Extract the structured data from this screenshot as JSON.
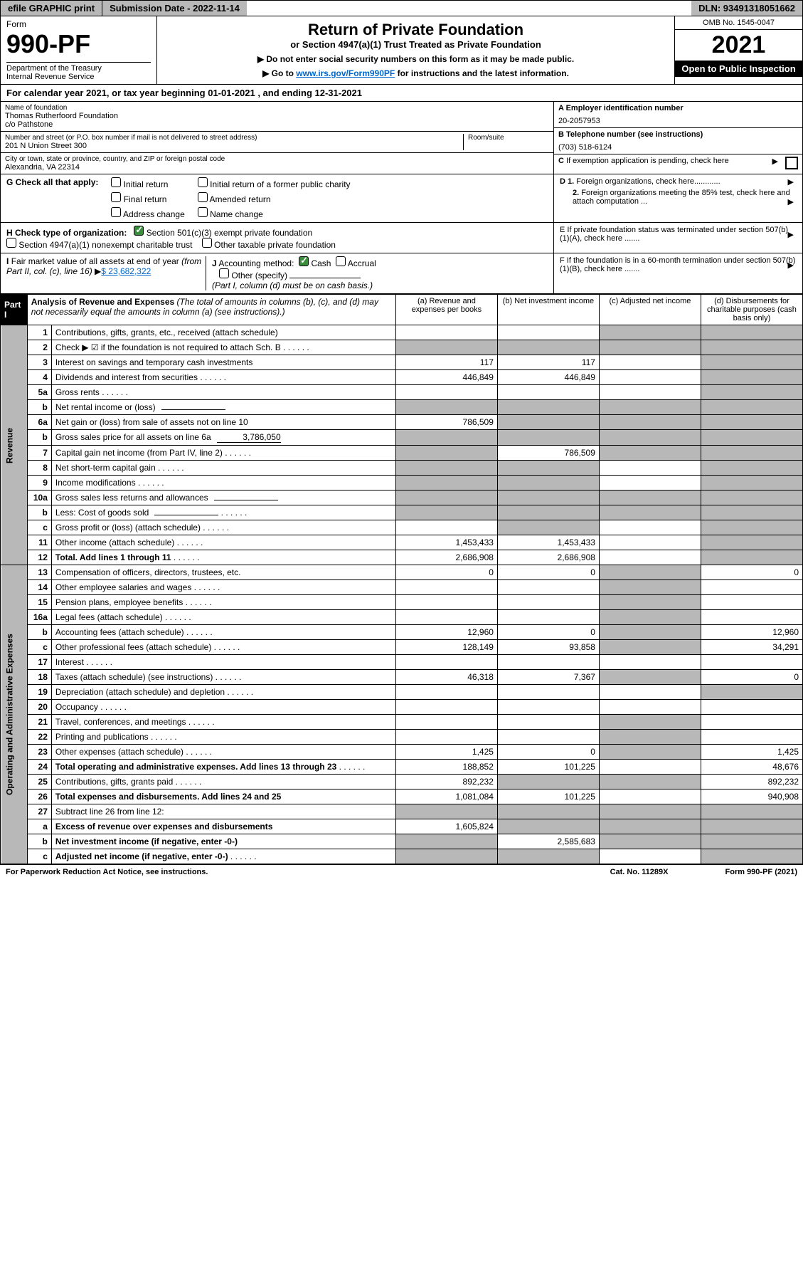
{
  "topbar": {
    "efile": "efile GRAPHIC print",
    "submission": "Submission Date - 2022-11-14",
    "dln": "DLN: 93491318051662"
  },
  "header": {
    "form_label": "Form",
    "form_num": "990-PF",
    "dept": "Department of the Treasury\nInternal Revenue Service",
    "title": "Return of Private Foundation",
    "subtitle": "or Section 4947(a)(1) Trust Treated as Private Foundation",
    "note1": "▶ Do not enter social security numbers on this form as it may be made public.",
    "note2_pre": "▶ Go to ",
    "note2_link": "www.irs.gov/Form990PF",
    "note2_post": " for instructions and the latest information.",
    "omb": "OMB No. 1545-0047",
    "year": "2021",
    "inspect": "Open to Public Inspection"
  },
  "cal": "For calendar year 2021, or tax year beginning 01-01-2021          , and ending 12-31-2021",
  "foundation": {
    "name_label": "Name of foundation",
    "name": "Thomas Rutherfoord Foundation",
    "care": "c/o Pathstone",
    "addr_label": "Number and street (or P.O. box number if mail is not delivered to street address)",
    "addr": "201 N Union Street 300",
    "room_label": "Room/suite",
    "city_label": "City or town, state or province, country, and ZIP or foreign postal code",
    "city": "Alexandria, VA  22314",
    "ein_label": "A Employer identification number",
    "ein": "20-2057953",
    "tel_label": "B Telephone number (see instructions)",
    "tel": "(703) 518-6124",
    "c_label": "C If exemption application is pending, check here",
    "d1": "D 1. Foreign organizations, check here............",
    "d2": "2. Foreign organizations meeting the 85% test, check here and attach computation ...",
    "e_label": "E  If private foundation status was terminated under section 507(b)(1)(A), check here .......",
    "f_label": "F  If the foundation is in a 60-month termination under section 507(b)(1)(B), check here ......."
  },
  "g": {
    "label": "G Check all that apply:",
    "opt1": "Initial return",
    "opt2": "Initial return of a former public charity",
    "opt3": "Final return",
    "opt4": "Amended return",
    "opt5": "Address change",
    "opt6": "Name change"
  },
  "h": {
    "label": "H Check type of organization:",
    "opt1": "Section 501(c)(3) exempt private foundation",
    "opt2": "Section 4947(a)(1) nonexempt charitable trust",
    "opt3": "Other taxable private foundation"
  },
  "i": {
    "label": "I Fair market value of all assets at end of year (from Part II, col. (c), line 16)",
    "val": "$ 23,682,322"
  },
  "j": {
    "label": "J Accounting method:",
    "cash": "Cash",
    "accrual": "Accrual",
    "other": "Other (specify)",
    "note": "(Part I, column (d) must be on cash basis.)"
  },
  "part1": {
    "tab": "Part I",
    "title": "Analysis of Revenue and Expenses",
    "note": "(The total of amounts in columns (b), (c), and (d) may not necessarily equal the amounts in column (a) (see instructions).)",
    "col_a": "(a)   Revenue and expenses per books",
    "col_b": "(b)   Net investment income",
    "col_c": "(c)   Adjusted net income",
    "col_d": "(d)   Disbursements for charitable purposes (cash basis only)"
  },
  "rows": [
    {
      "n": "1",
      "d": "Contributions, gifts, grants, etc., received (attach schedule)",
      "a": "",
      "b": "",
      "c": null,
      "x": null,
      "shade_c": true,
      "shade_d": true
    },
    {
      "n": "2",
      "d": "Check ▶ ☑ if the foundation is not required to attach Sch. B",
      "a": "",
      "b": "",
      "c": null,
      "x": null,
      "shade_a": true,
      "shade_b": true,
      "shade_c": true,
      "shade_d": true,
      "dots": true
    },
    {
      "n": "3",
      "d": "Interest on savings and temporary cash investments",
      "a": "117",
      "b": "117",
      "c": "",
      "x": null,
      "shade_d": true
    },
    {
      "n": "4",
      "d": "Dividends and interest from securities",
      "a": "446,849",
      "b": "446,849",
      "c": "",
      "x": null,
      "shade_d": true,
      "dots": true
    },
    {
      "n": "5a",
      "d": "Gross rents",
      "a": "",
      "b": "",
      "c": "",
      "x": null,
      "shade_d": true,
      "dots": true
    },
    {
      "n": "b",
      "d": "Net rental income or (loss)",
      "a": null,
      "b": null,
      "c": null,
      "x": null,
      "shade_a": true,
      "shade_b": true,
      "shade_c": true,
      "shade_d": true,
      "inline": true
    },
    {
      "n": "6a",
      "d": "Net gain or (loss) from sale of assets not on line 10",
      "a": "786,509",
      "b": null,
      "c": null,
      "x": null,
      "shade_b": true,
      "shade_c": true,
      "shade_d": true
    },
    {
      "n": "b",
      "d": "Gross sales price for all assets on line 6a",
      "a": null,
      "b": null,
      "c": null,
      "x": null,
      "shade_a": true,
      "shade_b": true,
      "shade_c": true,
      "shade_d": true,
      "inline": true,
      "inline_val": "3,786,050"
    },
    {
      "n": "7",
      "d": "Capital gain net income (from Part IV, line 2)",
      "a": null,
      "b": "786,509",
      "c": null,
      "x": null,
      "shade_a": true,
      "shade_c": true,
      "shade_d": true,
      "dots": true
    },
    {
      "n": "8",
      "d": "Net short-term capital gain",
      "a": null,
      "b": null,
      "c": "",
      "x": null,
      "shade_a": true,
      "shade_b": true,
      "shade_d": true,
      "dots": true
    },
    {
      "n": "9",
      "d": "Income modifications",
      "a": null,
      "b": null,
      "c": "",
      "x": null,
      "shade_a": true,
      "shade_b": true,
      "shade_d": true,
      "dots": true
    },
    {
      "n": "10a",
      "d": "Gross sales less returns and allowances",
      "a": null,
      "b": null,
      "c": null,
      "x": null,
      "shade_a": true,
      "shade_b": true,
      "shade_c": true,
      "shade_d": true,
      "inline": true
    },
    {
      "n": "b",
      "d": "Less: Cost of goods sold",
      "a": null,
      "b": null,
      "c": null,
      "x": null,
      "shade_a": true,
      "shade_b": true,
      "shade_c": true,
      "shade_d": true,
      "inline": true,
      "dots": true
    },
    {
      "n": "c",
      "d": "Gross profit or (loss) (attach schedule)",
      "a": "",
      "b": null,
      "c": "",
      "x": null,
      "shade_b": true,
      "shade_d": true,
      "dots": true
    },
    {
      "n": "11",
      "d": "Other income (attach schedule)",
      "a": "1,453,433",
      "b": "1,453,433",
      "c": "",
      "x": null,
      "shade_d": true,
      "dots": true
    },
    {
      "n": "12",
      "d": "Total. Add lines 1 through 11",
      "a": "2,686,908",
      "b": "2,686,908",
      "c": "",
      "x": null,
      "shade_d": true,
      "bold": true,
      "dots": true
    },
    {
      "n": "13",
      "d": "Compensation of officers, directors, trustees, etc.",
      "a": "0",
      "b": "0",
      "c": null,
      "x": "0",
      "shade_c": true
    },
    {
      "n": "14",
      "d": "Other employee salaries and wages",
      "a": "",
      "b": "",
      "c": null,
      "x": "",
      "shade_c": true,
      "dots": true
    },
    {
      "n": "15",
      "d": "Pension plans, employee benefits",
      "a": "",
      "b": "",
      "c": null,
      "x": "",
      "shade_c": true,
      "dots": true
    },
    {
      "n": "16a",
      "d": "Legal fees (attach schedule)",
      "a": "",
      "b": "",
      "c": null,
      "x": "",
      "shade_c": true,
      "dots": true
    },
    {
      "n": "b",
      "d": "Accounting fees (attach schedule)",
      "a": "12,960",
      "b": "0",
      "c": null,
      "x": "12,960",
      "shade_c": true,
      "dots": true
    },
    {
      "n": "c",
      "d": "Other professional fees (attach schedule)",
      "a": "128,149",
      "b": "93,858",
      "c": null,
      "x": "34,291",
      "shade_c": true,
      "dots": true
    },
    {
      "n": "17",
      "d": "Interest",
      "a": "",
      "b": "",
      "c": "",
      "x": "",
      "dots": true
    },
    {
      "n": "18",
      "d": "Taxes (attach schedule) (see instructions)",
      "a": "46,318",
      "b": "7,367",
      "c": null,
      "x": "0",
      "shade_c": true,
      "dots": true
    },
    {
      "n": "19",
      "d": "Depreciation (attach schedule) and depletion",
      "a": "",
      "b": "",
      "c": "",
      "x": null,
      "shade_d": true,
      "dots": true
    },
    {
      "n": "20",
      "d": "Occupancy",
      "a": "",
      "b": "",
      "c": "",
      "x": "",
      "dots": true
    },
    {
      "n": "21",
      "d": "Travel, conferences, and meetings",
      "a": "",
      "b": "",
      "c": null,
      "x": "",
      "shade_c": true,
      "dots": true
    },
    {
      "n": "22",
      "d": "Printing and publications",
      "a": "",
      "b": "",
      "c": null,
      "x": "",
      "shade_c": true,
      "dots": true
    },
    {
      "n": "23",
      "d": "Other expenses (attach schedule)",
      "a": "1,425",
      "b": "0",
      "c": null,
      "x": "1,425",
      "shade_c": true,
      "dots": true
    },
    {
      "n": "24",
      "d": "Total operating and administrative expenses. Add lines 13 through 23",
      "a": "188,852",
      "b": "101,225",
      "c": "",
      "x": "48,676",
      "bold": true,
      "dots": true
    },
    {
      "n": "25",
      "d": "Contributions, gifts, grants paid",
      "a": "892,232",
      "b": null,
      "c": null,
      "x": "892,232",
      "shade_b": true,
      "shade_c": true,
      "dots": true
    },
    {
      "n": "26",
      "d": "Total expenses and disbursements. Add lines 24 and 25",
      "a": "1,081,084",
      "b": "101,225",
      "c": "",
      "x": "940,908",
      "bold": true
    },
    {
      "n": "27",
      "d": "Subtract line 26 from line 12:",
      "a": null,
      "b": null,
      "c": null,
      "x": null,
      "shade_a": true,
      "shade_b": true,
      "shade_c": true,
      "shade_d": true
    },
    {
      "n": "a",
      "d": "Excess of revenue over expenses and disbursements",
      "a": "1,605,824",
      "b": null,
      "c": null,
      "x": null,
      "bold": true,
      "shade_b": true,
      "shade_c": true,
      "shade_d": true
    },
    {
      "n": "b",
      "d": "Net investment income (if negative, enter -0-)",
      "a": null,
      "b": "2,585,683",
      "c": null,
      "x": null,
      "bold": true,
      "shade_a": true,
      "shade_c": true,
      "shade_d": true
    },
    {
      "n": "c",
      "d": "Adjusted net income (if negative, enter -0-)",
      "a": null,
      "b": null,
      "c": "",
      "x": null,
      "bold": true,
      "shade_a": true,
      "shade_b": true,
      "shade_d": true,
      "dots": true
    }
  ],
  "vert": {
    "rev": "Revenue",
    "exp": "Operating and Administrative Expenses"
  },
  "footer": {
    "left": "For Paperwork Reduction Act Notice, see instructions.",
    "mid": "Cat. No. 11289X",
    "right": "Form 990-PF (2021)"
  },
  "colors": {
    "shade": "#b8b8b8",
    "link": "#0066cc",
    "check": "#3b8e3b"
  }
}
